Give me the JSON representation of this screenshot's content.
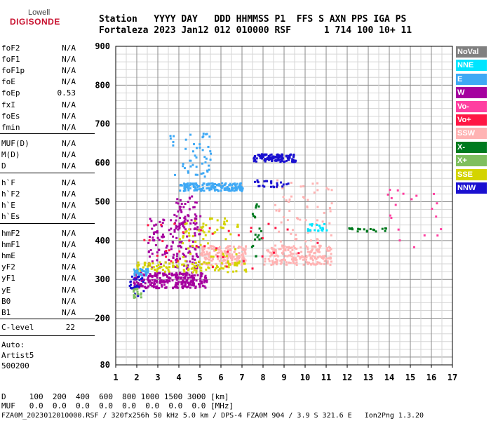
{
  "logo": {
    "line1": "Lowell",
    "line2": "DIGISONDE"
  },
  "header": {
    "row1": "Station   YYYY DAY   DDD HHMMSS P1  FFS S AXN PPS IGA PS",
    "row2": "Fortaleza 2023 Jan12 012 010000 RSF      1 714 100 10+ 11"
  },
  "params_group1": [
    {
      "name": "foF2",
      "value": "N/A"
    },
    {
      "name": "foF1",
      "value": "N/A"
    },
    {
      "name": "foF1p",
      "value": "N/A"
    },
    {
      "name": "foE",
      "value": "N/A"
    },
    {
      "name": "foEp",
      "value": "0.53"
    },
    {
      "name": "fxI",
      "value": "N/A"
    },
    {
      "name": "foEs",
      "value": "N/A"
    },
    {
      "name": "fmin",
      "value": "N/A"
    }
  ],
  "params_group2": [
    {
      "name": "MUF(D)",
      "value": "N/A"
    },
    {
      "name": "M(D)",
      "value": "N/A"
    },
    {
      "name": "D",
      "value": "N/A"
    }
  ],
  "params_group3": [
    {
      "name": "h`F",
      "value": "N/A"
    },
    {
      "name": "h`F2",
      "value": "N/A"
    },
    {
      "name": "h`E",
      "value": "N/A"
    },
    {
      "name": "h`Es",
      "value": "N/A"
    }
  ],
  "params_group4": [
    {
      "name": "hmF2",
      "value": "N/A"
    },
    {
      "name": "hmF1",
      "value": "N/A"
    },
    {
      "name": "hmE",
      "value": "N/A"
    },
    {
      "name": "yF2",
      "value": "N/A"
    },
    {
      "name": "yF1",
      "value": "N/A"
    },
    {
      "name": "yE",
      "value": "N/A"
    },
    {
      "name": "B0",
      "value": "N/A"
    },
    {
      "name": "B1",
      "value": "N/A"
    }
  ],
  "clevel": {
    "name": "C-level",
    "value": "22"
  },
  "auto": {
    "line1": "Auto:",
    "line2": "Artist5",
    "line3": "500200"
  },
  "bottom": {
    "d_row": "D     100  200  400  600  800 1000 1500 3000 [km]",
    "muf_row": "MUF   0.0  0.0  0.0  0.0  0.0  0.0  0.0  0.0 [MHz]",
    "footer": "FZA0M_2023012010000.RSF / 320fx256h 50 kHz 5.0 km / DPS-4 FZA0M 904 / 3.9 S 321.6 E   Ion2Png 1.3.20"
  },
  "legend": [
    {
      "label": "NoVal",
      "color": "#808080"
    },
    {
      "label": "NNE",
      "color": "#00e5ff"
    },
    {
      "label": "E",
      "color": "#3fa9f5"
    },
    {
      "label": "W",
      "color": "#a5009f"
    },
    {
      "label": "Vo-",
      "color": "#ff3fa0"
    },
    {
      "label": "Vo+",
      "color": "#ff1744"
    },
    {
      "label": "SSW",
      "color": "#ffb3b3"
    },
    {
      "label": "X-",
      "color": "#007a1f"
    },
    {
      "label": "X+",
      "color": "#7fbf5f"
    },
    {
      "label": "SSE",
      "color": "#d4d400"
    },
    {
      "label": "NNW",
      "color": "#1a10d0"
    }
  ],
  "chart_data": {
    "type": "scatter",
    "xlim": [
      1,
      17
    ],
    "ylim": [
      80,
      900
    ],
    "x_ticks": [
      1,
      2,
      3,
      4,
      5,
      6,
      7,
      8,
      9,
      10,
      11,
      12,
      13,
      14,
      15,
      16,
      17
    ],
    "y_ticks": [
      80,
      200,
      300,
      400,
      500,
      600,
      700,
      800,
      900
    ],
    "grid": true,
    "clusters": [
      {
        "name": "W",
        "color": "#a5009f",
        "x0": 1.8,
        "x1": 5.3,
        "y0": 280,
        "y1": 320,
        "n": 260
      },
      {
        "name": "W",
        "color": "#a5009f",
        "x0": 2.5,
        "x1": 5.0,
        "y0": 330,
        "y1": 470,
        "n": 150
      },
      {
        "name": "W",
        "color": "#a5009f",
        "x0": 3.8,
        "x1": 4.8,
        "y0": 430,
        "y1": 520,
        "n": 40
      },
      {
        "name": "SSW",
        "color": "#ffb3b3",
        "x0": 5.0,
        "x1": 7.2,
        "y0": 340,
        "y1": 390,
        "n": 180
      },
      {
        "name": "SSW",
        "color": "#ffb3b3",
        "x0": 8.0,
        "x1": 11.2,
        "y0": 340,
        "y1": 390,
        "n": 200
      },
      {
        "name": "SSW",
        "color": "#ffb3b3",
        "x0": 8.5,
        "x1": 11.3,
        "y0": 400,
        "y1": 560,
        "n": 60
      },
      {
        "name": "SSE",
        "color": "#d4d400",
        "x0": 1.9,
        "x1": 7.2,
        "y0": 320,
        "y1": 350,
        "n": 120
      },
      {
        "name": "SSE",
        "color": "#d4d400",
        "x0": 4.0,
        "x1": 6.8,
        "y0": 360,
        "y1": 460,
        "n": 60
      },
      {
        "name": "E",
        "color": "#3fa9f5",
        "x0": 4.0,
        "x1": 7.0,
        "y0": 530,
        "y1": 550,
        "n": 150
      },
      {
        "name": "E",
        "color": "#3fa9f5",
        "x0": 3.5,
        "x1": 5.5,
        "y0": 560,
        "y1": 690,
        "n": 50
      },
      {
        "name": "E",
        "color": "#3fa9f5",
        "x0": 1.8,
        "x1": 2.5,
        "y0": 310,
        "y1": 330,
        "n": 30
      },
      {
        "name": "NNW",
        "color": "#1a10d0",
        "x0": 7.5,
        "x1": 9.5,
        "y0": 605,
        "y1": 625,
        "n": 130
      },
      {
        "name": "NNW",
        "color": "#1a10d0",
        "x0": 1.6,
        "x1": 2.3,
        "y0": 260,
        "y1": 310,
        "n": 25
      },
      {
        "name": "NNW",
        "color": "#1a10d0",
        "x0": 7.4,
        "x1": 9.2,
        "y0": 540,
        "y1": 560,
        "n": 25
      },
      {
        "name": "X-",
        "color": "#007a1f",
        "x0": 7.3,
        "x1": 7.9,
        "y0": 360,
        "y1": 500,
        "n": 20
      },
      {
        "name": "X-",
        "color": "#007a1f",
        "x0": 12.0,
        "x1": 13.9,
        "y0": 425,
        "y1": 435,
        "n": 20
      },
      {
        "name": "X+",
        "color": "#7fbf5f",
        "x0": 1.8,
        "x1": 2.2,
        "y0": 255,
        "y1": 280,
        "n": 15
      },
      {
        "name": "NNE",
        "color": "#00e5ff",
        "x0": 10.0,
        "x1": 11.0,
        "y0": 425,
        "y1": 445,
        "n": 20
      },
      {
        "name": "Vo-",
        "color": "#ff3fa0",
        "x0": 13.5,
        "x1": 16.5,
        "y0": 380,
        "y1": 540,
        "n": 20
      },
      {
        "name": "Vo+",
        "color": "#ff1744",
        "x0": 2.0,
        "x1": 11.0,
        "y0": 330,
        "y1": 450,
        "n": 40
      }
    ]
  }
}
